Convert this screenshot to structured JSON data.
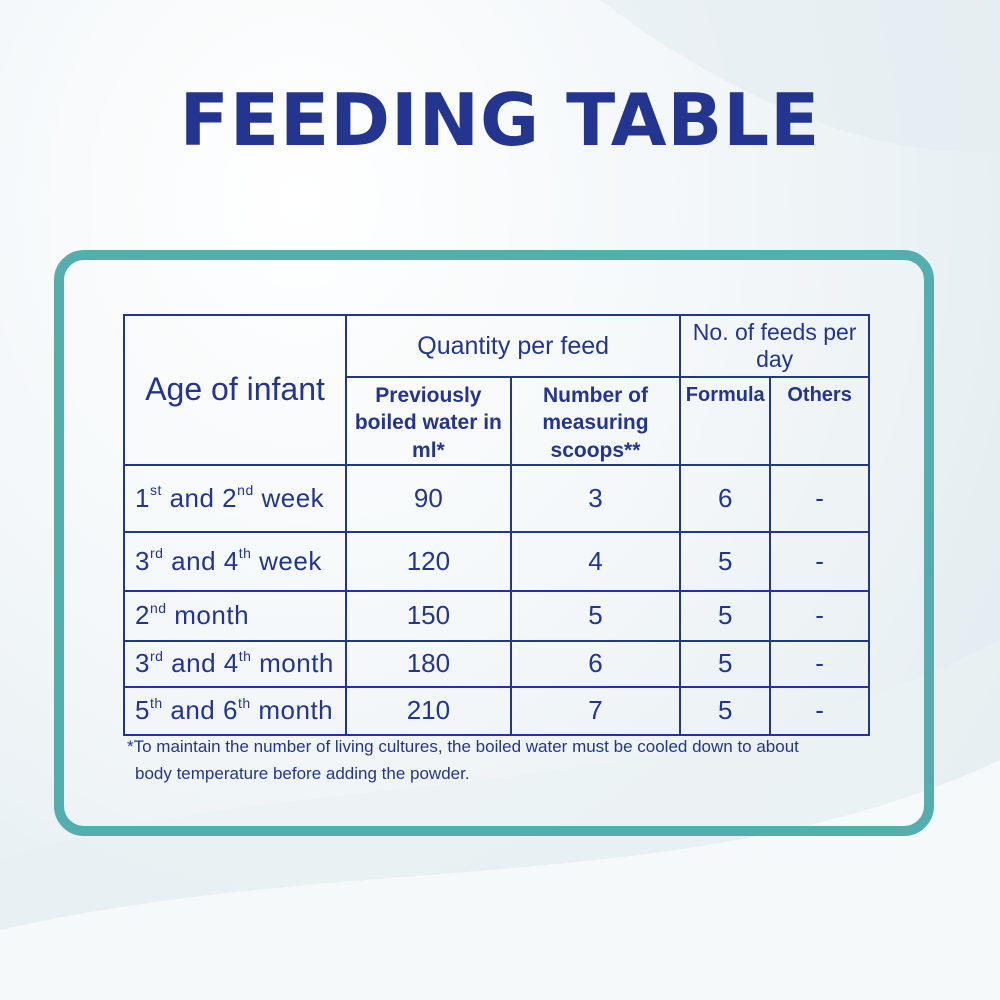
{
  "title": "FEEDING TABLE",
  "table": {
    "header": {
      "age": "Age of infant",
      "quantity_group": "Quantity per feed",
      "water": "Previously boiled water in ml*",
      "scoops": "Number of measuring scoops**",
      "feeds_group": "No. of feeds per day",
      "formula": "Formula",
      "others": "Others"
    },
    "rows": [
      {
        "age_a": "1",
        "sup_a": "st",
        "mid": " and 2",
        "sup_b": "nd",
        "tail": " week",
        "water": "90",
        "scoops": "3",
        "formula": "6",
        "others": "-"
      },
      {
        "age_a": "3",
        "sup_a": "rd",
        "mid": " and 4",
        "sup_b": "th",
        "tail": " week",
        "water": "120",
        "scoops": "4",
        "formula": "5",
        "others": "-"
      },
      {
        "age_a": "2",
        "sup_a": "nd",
        "mid": " month",
        "sup_b": "",
        "tail": "",
        "water": "150",
        "scoops": "5",
        "formula": "5",
        "others": "-"
      },
      {
        "age_a": "3",
        "sup_a": "rd",
        "mid": " and 4",
        "sup_b": "th",
        "tail": " month",
        "water": "180",
        "scoops": "6",
        "formula": "5",
        "others": "-"
      },
      {
        "age_a": "5",
        "sup_a": "th",
        "mid": " and 6",
        "sup_b": "th",
        "tail": " month",
        "water": "210",
        "scoops": "7",
        "formula": "5",
        "others": "-"
      }
    ]
  },
  "footnote": {
    "line1": "*To maintain the number of living cultures, the boiled water must be cooled down to about",
    "line2": "body temperature  before adding the powder."
  },
  "colors": {
    "primary": "#23358f",
    "frame": "#55adad"
  }
}
